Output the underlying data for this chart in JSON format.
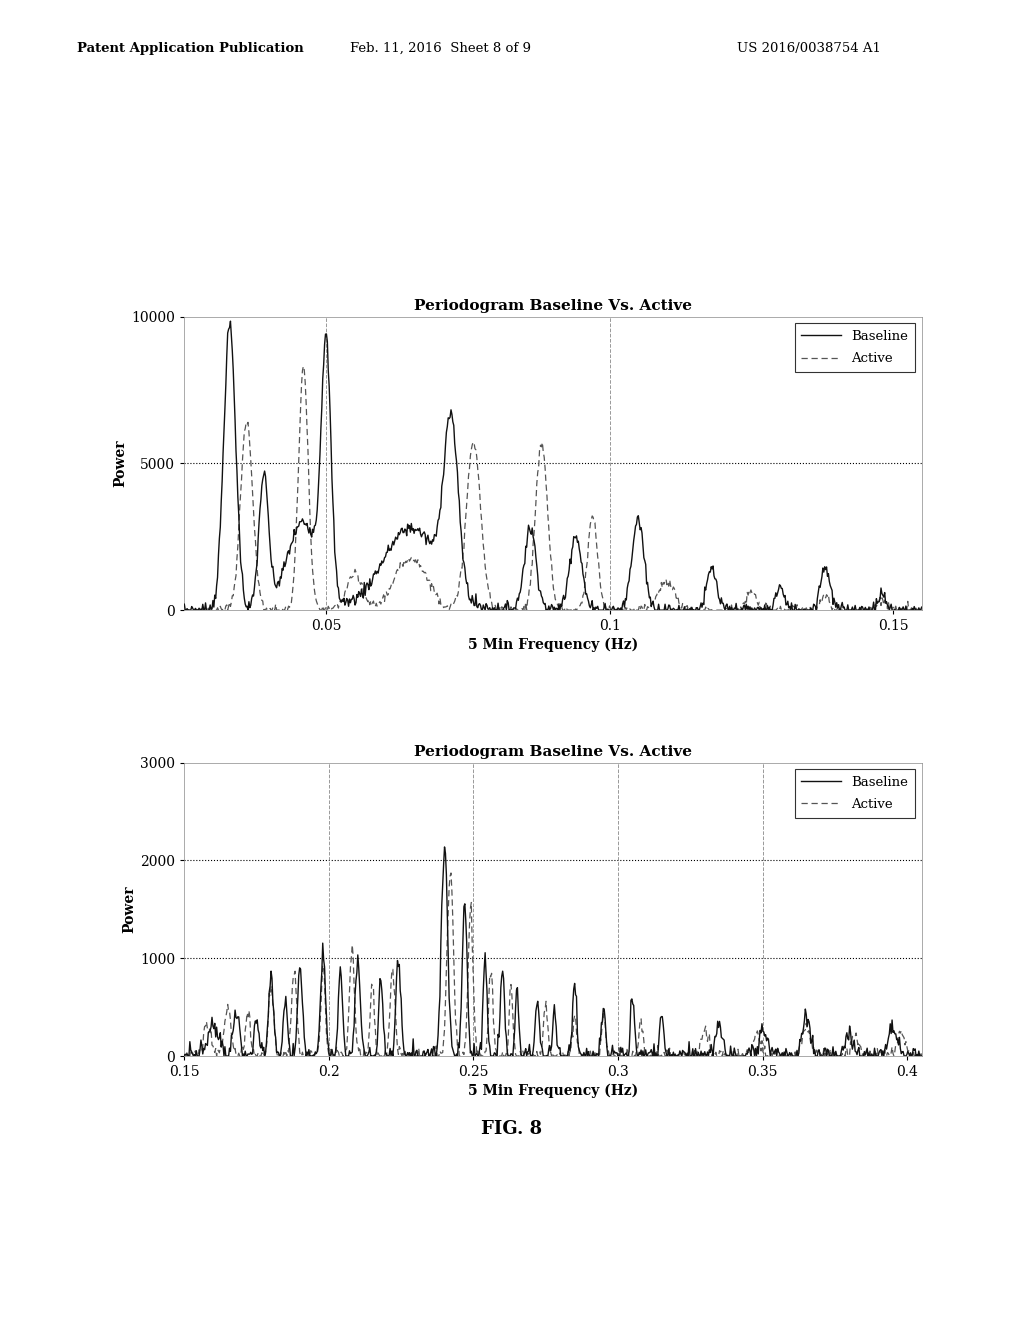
{
  "chart1": {
    "title": "Periodogram Baseline Vs. Active",
    "xlabel": "5 Min Frequency (Hz)",
    "ylabel": "Power",
    "xlim": [
      0.025,
      0.155
    ],
    "ylim": [
      0,
      10000
    ],
    "yticks": [
      0,
      5000,
      10000
    ],
    "xticks": [
      0.05,
      0.1,
      0.15
    ],
    "xtick_labels": [
      "0.05",
      "0.1",
      "0.15"
    ],
    "ytick_labels": [
      "0",
      "5000",
      "10000"
    ],
    "hline": 5000,
    "vlines": [
      0.05,
      0.1
    ],
    "legend": [
      "Baseline",
      "Active"
    ]
  },
  "chart2": {
    "title": "Periodogram Baseline Vs. Active",
    "xlabel": "5 Min Frequency (Hz)",
    "ylabel": "Power",
    "xlim": [
      0.15,
      0.405
    ],
    "ylim": [
      0,
      3000
    ],
    "yticks": [
      0,
      1000,
      2000,
      3000
    ],
    "xticks": [
      0.15,
      0.2,
      0.25,
      0.3,
      0.35,
      0.4
    ],
    "xtick_labels": [
      "0.15",
      "0.2",
      "0.25",
      "0.3",
      "0.35",
      "0.4"
    ],
    "ytick_labels": [
      "0",
      "1000",
      "2000",
      "3000"
    ],
    "hlines": [
      1000,
      2000
    ],
    "vlines": [
      0.2,
      0.25,
      0.3,
      0.35
    ],
    "legend": [
      "Baseline",
      "Active"
    ]
  },
  "fig_label": "FIG. 8",
  "header_left": "Patent Application Publication",
  "header_mid": "Feb. 11, 2016  Sheet 8 of 9",
  "header_right": "US 2016/0038754 A1",
  "bg_color": "#ffffff",
  "line_color": "#111111",
  "dash_color": "#555555"
}
